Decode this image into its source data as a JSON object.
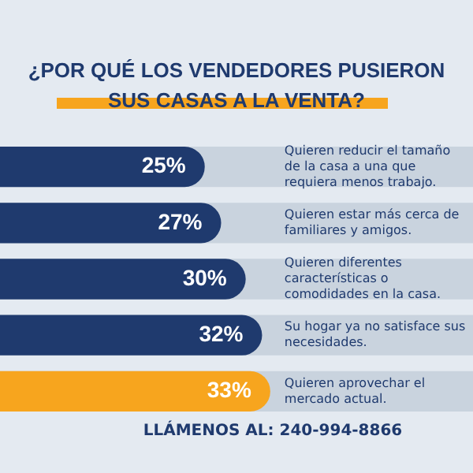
{
  "chart_data": {
    "type": "bar",
    "orientation": "horizontal",
    "title": "¿POR QUÉ LOS VENDEDORES PUSIERON SUS CASAS A LA VENTA?",
    "categories": [
      "Quieren reducir el tamaño de la casa a una que requiera menos trabajo.",
      "Quieren estar más cerca de familiares y amigos.",
      "Quieren diferentes características o comodidades en la casa.",
      "Su hogar ya no satisface sus necesidades.",
      "Quieren aprovechar el mercado actual."
    ],
    "values": [
      25,
      27,
      30,
      32,
      33
    ],
    "value_labels": [
      "25%",
      "27%",
      "30%",
      "32%",
      "33%"
    ],
    "colors": [
      "#1f3a6e",
      "#1f3a6e",
      "#1f3a6e",
      "#1f3a6e",
      "#f7a51e"
    ],
    "annotations": [
      "LLÁMENOS AL: 240-994-8866"
    ]
  }
}
